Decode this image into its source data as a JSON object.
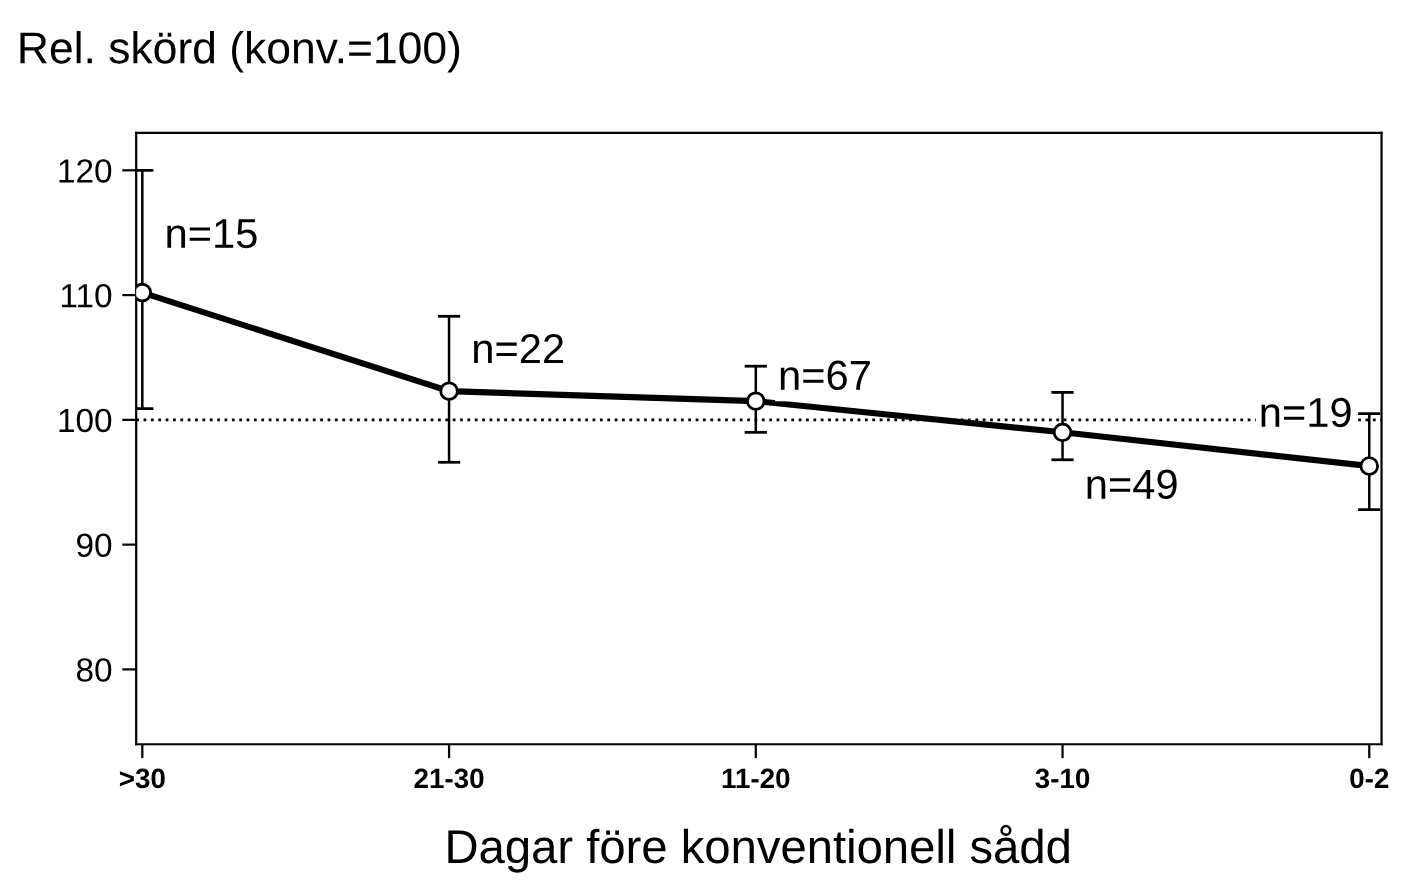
{
  "chart_data": {
    "type": "line",
    "ylabel": "Rel. skörd (konv.=100)",
    "xlabel": "Dagar före konventionell sådd",
    "categories": [
      ">30",
      "21-30",
      "11-20",
      "3-10",
      "0-2"
    ],
    "series": [
      {
        "color": "#000000",
        "values": [
          110.2,
          102.3,
          101.5,
          99.0,
          96.3
        ],
        "errors": [
          [
            100.9,
            120.0
          ],
          [
            96.6,
            108.3
          ],
          [
            99.0,
            104.3
          ],
          [
            96.8,
            102.2
          ],
          [
            92.8,
            100.5
          ]
        ]
      }
    ],
    "ylim": [
      74,
      123
    ],
    "yticks": [
      80,
      90,
      100,
      110,
      120
    ],
    "ref_lines": [
      {
        "axis": "y",
        "value": 100,
        "color": "#000000",
        "line_style": "dotted"
      }
    ],
    "annotations": [
      {
        "text": "n=15",
        "x": ">30",
        "y": 110.2
      },
      {
        "text": "n=22",
        "x": "21-30",
        "y": 102.3
      },
      {
        "text": "n=67",
        "x": "11-20",
        "y": 101.5
      },
      {
        "text": "n=49",
        "x": "3-10",
        "y": 99.0
      },
      {
        "text": "n=19",
        "x": "0-2",
        "y": 96.3
      }
    ],
    "marker": "circle",
    "line_style": "solid",
    "grid": false,
    "legend": false
  }
}
